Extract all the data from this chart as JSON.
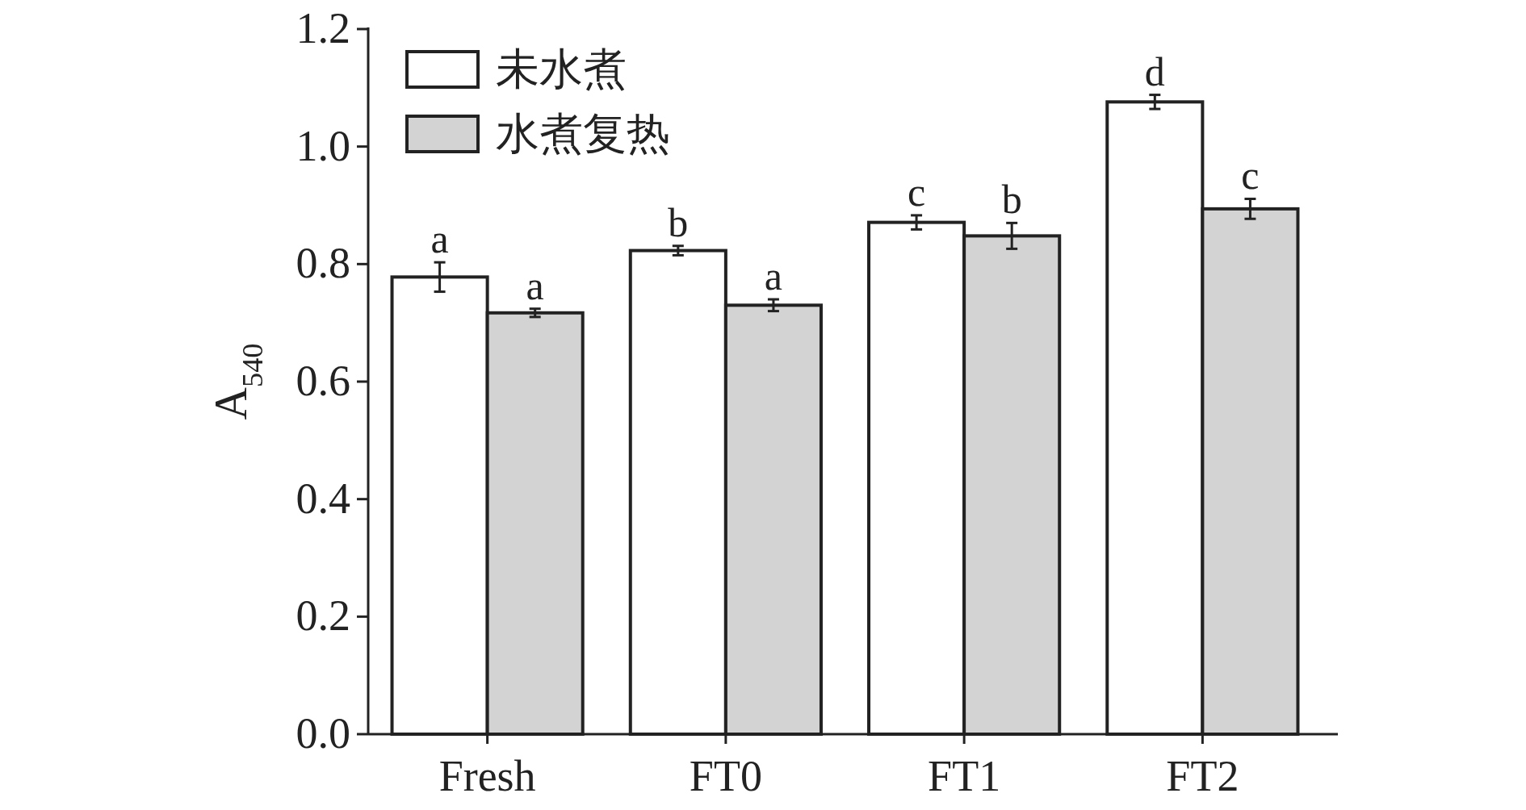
{
  "chart_data": {
    "type": "bar",
    "ylabel": "A$_{540}$",
    "categories": [
      "Fresh",
      "FT0",
      "FT1",
      "FT2"
    ],
    "series": [
      {
        "name": "未水煮",
        "color": "#ffffff",
        "values": [
          0.778,
          0.823,
          0.871,
          1.076
        ],
        "errors": [
          0.025,
          0.008,
          0.012,
          0.012
        ]
      },
      {
        "name": "水煮复热",
        "color": "#d3d3d3",
        "values": [
          0.717,
          0.73,
          0.848,
          0.894
        ],
        "errors": [
          0.007,
          0.01,
          0.022,
          0.017
        ]
      }
    ],
    "ylim": [
      0,
      1.2
    ],
    "yticks": [
      {
        "value": 0,
        "label": "0.0"
      },
      {
        "value": 0.2,
        "label": "0.2"
      },
      {
        "value": 0.4,
        "label": "0.4"
      },
      {
        "value": 0.6,
        "label": "0.6"
      },
      {
        "value": 0.8,
        "label": "0.8"
      },
      {
        "value": 1,
        "label": "1.0"
      },
      {
        "value": 1.2,
        "label": "1.2"
      }
    ],
    "legend": "top left",
    "grid": false,
    "annotations": [
      "a",
      "a",
      "b",
      "a",
      "c",
      "b",
      "d",
      "c"
    ]
  }
}
